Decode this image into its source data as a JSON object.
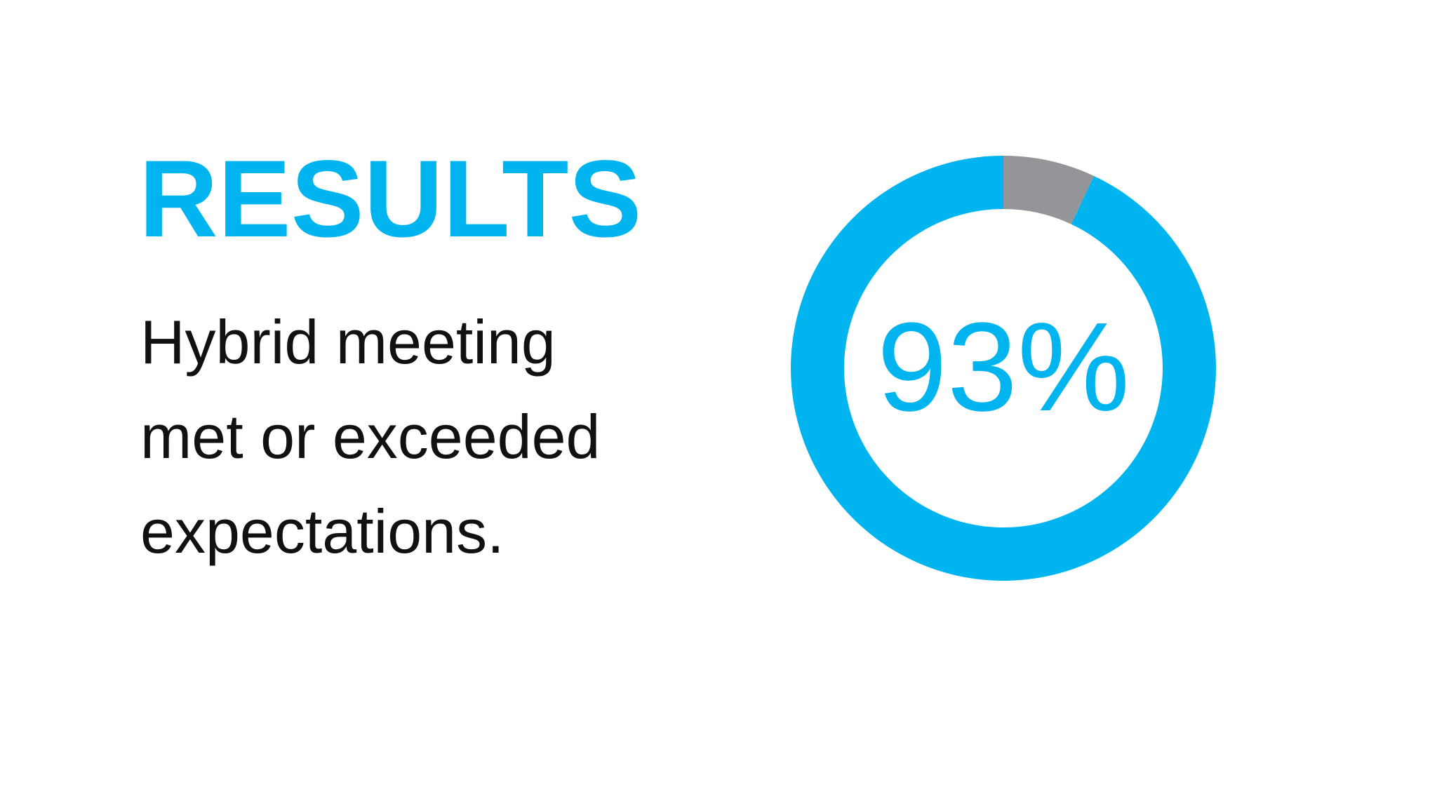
{
  "chart_data": {
    "type": "donut",
    "title": "RESULTS",
    "subtitle": [
      "Hybrid meeting",
      "met or exceeded",
      "expectations."
    ],
    "values": [
      93,
      7
    ],
    "value_labels": [
      "93%",
      null
    ],
    "colors": [
      "#00b5ef",
      "#939598"
    ]
  }
}
